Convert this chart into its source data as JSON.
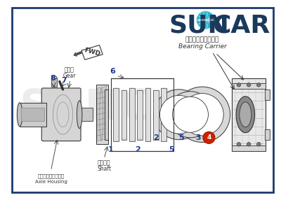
{
  "bg_color": "#ffffff",
  "outer_border_color": "#1a3a6c",
  "inner_bg": "#f5f5f5",
  "line_color": "#555555",
  "dark_line": "#333333",
  "label_color": "#1a3a8c",
  "label4_bg": "#cc2200",
  "suncar_color": "#1a3a5c",
  "globe_color": "#00aacc",
  "watermark_color": "#e0e0e0",
  "watermark_alpha": 0.6,
  "subtitle_jp": "ベアリングキャリア",
  "subtitle_en": "Bearing Carrier",
  "gear_jp": "ギヤー",
  "gear_en": "Gear",
  "shaft_jp": "シャフト",
  "shaft_en": "Shaft",
  "axle_jp": "アクスルハウジング",
  "axle_en": "Axle Housing"
}
